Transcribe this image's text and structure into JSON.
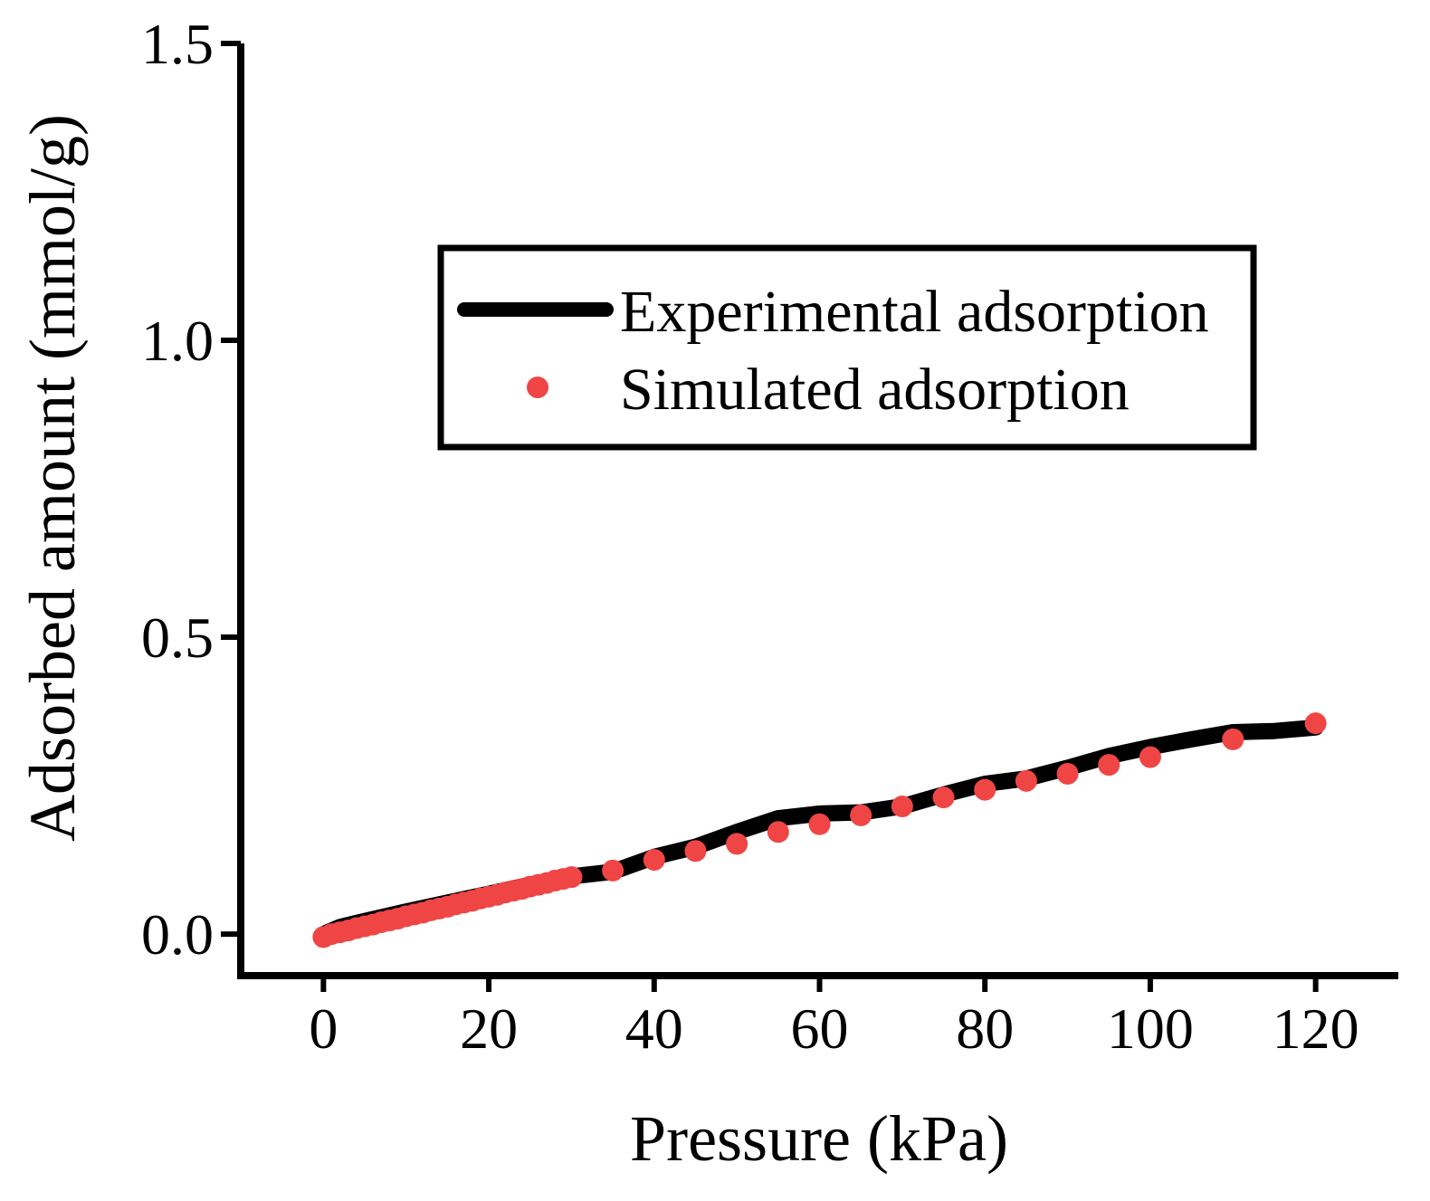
{
  "chart_data": {
    "type": "line",
    "title": "",
    "xlabel": "Pressure (kPa)",
    "ylabel": "Adsorbed amount (mmol/g)",
    "xlim": [
      -10,
      130
    ],
    "ylim": [
      -0.07,
      1.5
    ],
    "x_ticks": [
      0,
      20,
      40,
      60,
      80,
      100,
      120
    ],
    "x_tick_labels": [
      "0",
      "20",
      "40",
      "60",
      "80",
      "100",
      "120"
    ],
    "y_ticks": [
      0.0,
      0.5,
      1.0,
      1.5
    ],
    "y_tick_labels": [
      "0.0",
      "0.5",
      "1.0",
      "1.5"
    ],
    "grid": false,
    "legend_position": "upper-center",
    "series": [
      {
        "name": "Experimental adsorption",
        "kind": "line",
        "color": "#000000",
        "x": [
          0,
          2,
          5,
          10,
          15,
          20,
          25,
          30,
          35,
          40,
          45,
          50,
          55,
          60,
          65,
          70,
          75,
          80,
          85,
          90,
          95,
          100,
          105,
          110,
          115,
          120
        ],
        "y": [
          0.0,
          0.012,
          0.022,
          0.038,
          0.053,
          0.068,
          0.083,
          0.097,
          0.105,
          0.13,
          0.147,
          0.172,
          0.195,
          0.203,
          0.205,
          0.215,
          0.235,
          0.253,
          0.262,
          0.28,
          0.3,
          0.315,
          0.328,
          0.34,
          0.342,
          0.348
        ]
      },
      {
        "name": "Simulated adsorption",
        "kind": "scatter",
        "color": "#f04545",
        "x": [
          0,
          1,
          2,
          3,
          4,
          5,
          6,
          7,
          8,
          9,
          10,
          11,
          12,
          13,
          14,
          15,
          16,
          17,
          18,
          19,
          20,
          21,
          22,
          23,
          24,
          25,
          26,
          27,
          28,
          29,
          30,
          35,
          40,
          45,
          50,
          55,
          60,
          65,
          70,
          75,
          80,
          85,
          90,
          95,
          100,
          110,
          120
        ],
        "y": [
          -0.005,
          0.0,
          0.003,
          0.006,
          0.01,
          0.013,
          0.016,
          0.02,
          0.023,
          0.026,
          0.03,
          0.033,
          0.036,
          0.04,
          0.043,
          0.046,
          0.05,
          0.053,
          0.056,
          0.06,
          0.063,
          0.066,
          0.07,
          0.073,
          0.076,
          0.08,
          0.083,
          0.086,
          0.09,
          0.093,
          0.096,
          0.107,
          0.125,
          0.14,
          0.152,
          0.172,
          0.185,
          0.2,
          0.215,
          0.23,
          0.243,
          0.258,
          0.27,
          0.285,
          0.298,
          0.328,
          0.355
        ]
      }
    ]
  }
}
